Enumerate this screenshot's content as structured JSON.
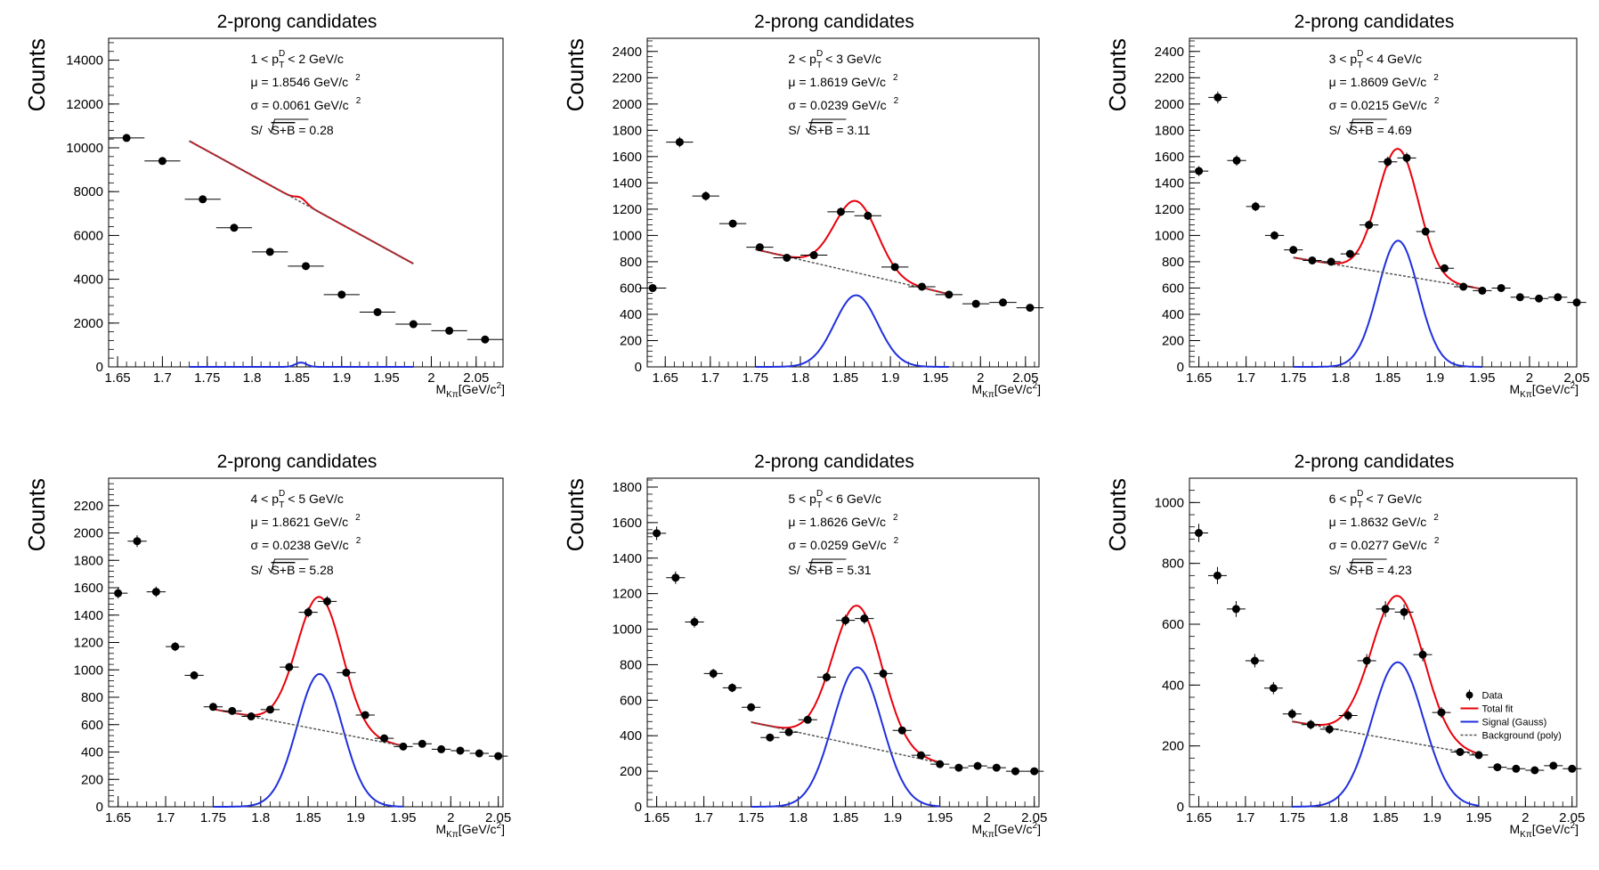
{
  "colors": {
    "data": "#000000",
    "total": "#e8000b",
    "signal": "#1f2fdc",
    "background": "#555555"
  },
  "legend": {
    "data": "Data",
    "total": "Total fit",
    "signal": "Signal (Gauss)",
    "background": "Background (poly)"
  },
  "chart_data": [
    {
      "type": "scatter",
      "title": "2-prong candidates",
      "ylabel": "Counts",
      "xlabel_main": "M",
      "xlabel_sub": "Kπ",
      "xlabel_unit": "[GeV/c",
      "xlabel_unit_sup": "2",
      "xlabel_close": "]",
      "xlim": [
        1.64,
        2.08
      ],
      "ylim": [
        0,
        15000
      ],
      "xticks": [
        1.65,
        1.7,
        1.75,
        1.8,
        1.85,
        1.9,
        1.95,
        2,
        2.05
      ],
      "xtick_labels": [
        "1.65",
        "1.7",
        "1.75",
        "1.8",
        "1.85",
        "1.9",
        "1.95",
        "2",
        "2.05"
      ],
      "yticks": [
        0,
        2000,
        4000,
        6000,
        8000,
        10000,
        12000,
        14000
      ],
      "pt_lo": "1",
      "pt_hi": "2",
      "pt_unit": "GeV/c",
      "mu_text": "μ = 1.8546 GeV/c",
      "sigma_text": "σ = 0.0061 GeV/c",
      "unit_sup": "2",
      "sig_prefix": "S/",
      "sig_sqrt": "S+B",
      "sig_value": " = 0.28",
      "data": {
        "x": [
          1.66,
          1.7,
          1.745,
          1.78,
          1.82,
          1.86,
          1.9,
          1.94,
          1.98,
          2.02,
          2.06
        ],
        "y": [
          10450,
          9400,
          7650,
          6350,
          5250,
          4600,
          3300,
          2500,
          1950,
          1650,
          1250
        ],
        "xerr": 0.02,
        "yerr": [
          120,
          110,
          100,
          90,
          80,
          75,
          65,
          55,
          50,
          45,
          40
        ]
      },
      "fit": {
        "range": [
          1.73,
          1.98
        ],
        "mu": 1.8546,
        "sigma": 0.0061,
        "amp": 200,
        "bg_a": 7400,
        "bg_b": -22400
      },
      "show_legend": false
    },
    {
      "type": "scatter",
      "title": "2-prong candidates",
      "ylabel": "Counts",
      "xlabel_main": "M",
      "xlabel_sub": "Kπ",
      "xlabel_unit": "[GeV/c",
      "xlabel_unit_sup": "2",
      "xlabel_close": "]",
      "xlim": [
        1.63,
        2.065
      ],
      "ylim": [
        0,
        2500
      ],
      "xticks": [
        1.65,
        1.7,
        1.75,
        1.8,
        1.85,
        1.9,
        1.95,
        2,
        2.05
      ],
      "xtick_labels": [
        "1.65",
        "1.7",
        "1.75",
        "1.8",
        "1.85",
        "1.9",
        "1.95",
        "2",
        "2.05"
      ],
      "yticks": [
        0,
        200,
        400,
        600,
        800,
        1000,
        1200,
        1400,
        1600,
        1800,
        2000,
        2200,
        2400
      ],
      "pt_lo": "2",
      "pt_hi": "3",
      "pt_unit": "GeV/c",
      "mu_text": "μ = 1.8619 GeV/c",
      "sigma_text": "σ = 0.0239 GeV/c",
      "unit_sup": "2",
      "sig_prefix": "S/",
      "sig_sqrt": "S+B",
      "sig_value": " = 3.11",
      "data": {
        "x": [
          1.636,
          1.666,
          1.695,
          1.725,
          1.755,
          1.785,
          1.815,
          1.845,
          1.875,
          1.905,
          1.935,
          1.965,
          1.995,
          2.025,
          2.055
        ],
        "y": [
          600,
          1710,
          1300,
          1090,
          910,
          830,
          850,
          1180,
          1150,
          760,
          610,
          550,
          480,
          490,
          450
        ],
        "xerr": 0.015,
        "yerr": [
          24,
          40,
          35,
          30,
          28,
          28,
          28,
          33,
          33,
          27,
          24,
          23,
          22,
          22,
          21
        ]
      },
      "fit": {
        "range": [
          1.75,
          1.965
        ],
        "mu": 1.8619,
        "sigma": 0.0239,
        "amp": 545,
        "bg_a": 720,
        "bg_b": -1585
      },
      "show_legend": false
    },
    {
      "type": "scatter",
      "title": "2-prong candidates",
      "ylabel": "Counts",
      "xlabel_main": "M",
      "xlabel_sub": "Kπ",
      "xlabel_unit": "[GeV/c",
      "xlabel_unit_sup": "2",
      "xlabel_close": "]",
      "xlim": [
        1.64,
        2.05
      ],
      "ylim": [
        0,
        2500
      ],
      "xticks": [
        1.65,
        1.7,
        1.75,
        1.8,
        1.85,
        1.9,
        1.95,
        2,
        2.05
      ],
      "xtick_labels": [
        "1.65",
        "1.7",
        "1.75",
        "1.8",
        "1.85",
        "1.9",
        "1.95",
        "2",
        "2.05"
      ],
      "yticks": [
        0,
        200,
        400,
        600,
        800,
        1000,
        1200,
        1400,
        1600,
        1800,
        2000,
        2200,
        2400
      ],
      "pt_lo": "3",
      "pt_hi": "4",
      "pt_unit": "GeV/c",
      "mu_text": "μ = 1.8609 GeV/c",
      "sigma_text": "σ = 0.0215 GeV/c",
      "unit_sup": "2",
      "sig_prefix": "S/",
      "sig_sqrt": "S+B",
      "sig_value": " = 4.69",
      "data": {
        "x": [
          1.65,
          1.67,
          1.69,
          1.71,
          1.73,
          1.75,
          1.77,
          1.79,
          1.81,
          1.83,
          1.85,
          1.87,
          1.89,
          1.91,
          1.93,
          1.95,
          1.97,
          1.99,
          2.01,
          2.03,
          2.05
        ],
        "y": [
          1490,
          2050,
          1570,
          1220,
          1000,
          890,
          810,
          800,
          860,
          1080,
          1560,
          1590,
          1030,
          750,
          610,
          580,
          600,
          530,
          520,
          530,
          490
        ],
        "xerr": 0.01,
        "yerr": [
          38,
          45,
          40,
          35,
          32,
          30,
          28,
          28,
          29,
          33,
          40,
          40,
          32,
          27,
          25,
          24,
          24,
          23,
          23,
          23,
          22
        ]
      },
      "fit": {
        "range": [
          1.75,
          1.95
        ],
        "mu": 1.8609,
        "sigma": 0.0215,
        "amp": 960,
        "bg_a": 700,
        "bg_b": -1200
      },
      "show_legend": false
    },
    {
      "type": "scatter",
      "title": "2-prong candidates",
      "ylabel": "Counts",
      "xlabel_main": "M",
      "xlabel_sub": "Kπ",
      "xlabel_unit": "[GeV/c",
      "xlabel_unit_sup": "2",
      "xlabel_close": "]",
      "xlim": [
        1.64,
        2.055
      ],
      "ylim": [
        0,
        2400
      ],
      "xticks": [
        1.65,
        1.7,
        1.75,
        1.8,
        1.85,
        1.9,
        1.95,
        2,
        2.05
      ],
      "xtick_labels": [
        "1.65",
        "1.7",
        "1.75",
        "1.8",
        "1.85",
        "1.9",
        "1.95",
        "2",
        "2.05"
      ],
      "yticks": [
        0,
        200,
        400,
        600,
        800,
        1000,
        1200,
        1400,
        1600,
        1800,
        2000,
        2200
      ],
      "pt_lo": "4",
      "pt_hi": "5",
      "pt_unit": "GeV/c",
      "mu_text": "μ = 1.8621 GeV/c",
      "sigma_text": "σ = 0.0238 GeV/c",
      "unit_sup": "2",
      "sig_prefix": "S/",
      "sig_sqrt": "S+B",
      "sig_value": " = 5.28",
      "data": {
        "x": [
          1.65,
          1.67,
          1.69,
          1.71,
          1.73,
          1.75,
          1.77,
          1.79,
          1.81,
          1.83,
          1.85,
          1.87,
          1.89,
          1.91,
          1.93,
          1.95,
          1.97,
          1.99,
          2.01,
          2.03,
          2.05
        ],
        "y": [
          1560,
          1940,
          1570,
          1170,
          960,
          730,
          700,
          660,
          710,
          1020,
          1420,
          1500,
          980,
          670,
          500,
          440,
          460,
          420,
          410,
          390,
          370
        ],
        "xerr": 0.01,
        "yerr": [
          38,
          43,
          38,
          33,
          30,
          26,
          26,
          25,
          26,
          31,
          37,
          38,
          30,
          25,
          22,
          21,
          21,
          20,
          20,
          19,
          19
        ]
      },
      "fit": {
        "range": [
          1.75,
          1.95
        ],
        "mu": 1.8621,
        "sigma": 0.0238,
        "amp": 970,
        "bg_a": 565,
        "bg_b": -1350
      },
      "show_legend": false
    },
    {
      "type": "scatter",
      "title": "2-prong candidates",
      "ylabel": "Counts",
      "xlabel_main": "M",
      "xlabel_sub": "Kπ",
      "xlabel_unit": "[GeV/c",
      "xlabel_unit_sup": "2",
      "xlabel_close": "]",
      "xlim": [
        1.64,
        2.055
      ],
      "ylim": [
        0,
        1850
      ],
      "xticks": [
        1.65,
        1.7,
        1.75,
        1.8,
        1.85,
        1.9,
        1.95,
        2,
        2.05
      ],
      "xtick_labels": [
        "1.65",
        "1.7",
        "1.75",
        "1.8",
        "1.85",
        "1.9",
        "1.95",
        "2",
        "2.05"
      ],
      "yticks": [
        0,
        200,
        400,
        600,
        800,
        1000,
        1200,
        1400,
        1600,
        1800
      ],
      "pt_lo": "5",
      "pt_hi": "6",
      "pt_unit": "GeV/c",
      "mu_text": "μ = 1.8626 GeV/c",
      "sigma_text": "σ = 0.0259 GeV/c",
      "unit_sup": "2",
      "sig_prefix": "S/",
      "sig_sqrt": "S+B",
      "sig_value": " = 5.31",
      "data": {
        "x": [
          1.65,
          1.67,
          1.69,
          1.71,
          1.73,
          1.75,
          1.77,
          1.79,
          1.81,
          1.83,
          1.85,
          1.87,
          1.89,
          1.91,
          1.93,
          1.95,
          1.97,
          1.99,
          2.01,
          2.03,
          2.05
        ],
        "y": [
          1540,
          1290,
          1040,
          750,
          670,
          560,
          390,
          420,
          490,
          730,
          1050,
          1060,
          750,
          430,
          290,
          240,
          220,
          230,
          220,
          200,
          200
        ],
        "xerr": 0.01,
        "yerr": [
          38,
          35,
          31,
          27,
          25,
          23,
          19,
          20,
          22,
          26,
          31,
          31,
          27,
          20,
          17,
          15,
          14,
          15,
          14,
          14,
          14
        ]
      },
      "fit": {
        "range": [
          1.75,
          1.95
        ],
        "mu": 1.8626,
        "sigma": 0.0259,
        "amp": 785,
        "bg_a": 350,
        "bg_b": -1150
      },
      "show_legend": false
    },
    {
      "type": "scatter",
      "title": "2-prong candidates",
      "ylabel": "Counts",
      "xlabel_main": "M",
      "xlabel_sub": "Kπ",
      "xlabel_unit": "[GeV/c",
      "xlabel_unit_sup": "2",
      "xlabel_close": "]",
      "xlim": [
        1.64,
        2.055
      ],
      "ylim": [
        0,
        1080
      ],
      "xticks": [
        1.65,
        1.7,
        1.75,
        1.8,
        1.85,
        1.9,
        1.95,
        2,
        2.05
      ],
      "xtick_labels": [
        "1.65",
        "1.7",
        "1.75",
        "1.8",
        "1.85",
        "1.9",
        "1.95",
        "2",
        "2.05"
      ],
      "yticks": [
        0,
        200,
        400,
        600,
        800,
        1000
      ],
      "pt_lo": "6",
      "pt_hi": "7",
      "pt_unit": "GeV/c",
      "mu_text": "μ = 1.8632 GeV/c",
      "sigma_text": "σ = 0.0277 GeV/c",
      "unit_sup": "2",
      "sig_prefix": "S/",
      "sig_sqrt": "S+B",
      "sig_value": " = 4.23",
      "data": {
        "x": [
          1.65,
          1.67,
          1.69,
          1.71,
          1.73,
          1.75,
          1.77,
          1.79,
          1.81,
          1.83,
          1.85,
          1.87,
          1.89,
          1.91,
          1.93,
          1.95,
          1.97,
          1.99,
          2.01,
          2.03,
          2.05
        ],
        "y": [
          900,
          760,
          650,
          480,
          390,
          305,
          270,
          255,
          300,
          480,
          650,
          640,
          500,
          310,
          180,
          170,
          130,
          125,
          120,
          135,
          125
        ],
        "xerr": 0.01,
        "yerr": [
          30,
          28,
          26,
          22,
          20,
          17,
          16,
          16,
          17,
          22,
          26,
          25,
          22,
          18,
          13,
          13,
          11,
          11,
          11,
          12,
          11
        ]
      },
      "fit": {
        "range": [
          1.75,
          1.95
        ],
        "mu": 1.8632,
        "sigma": 0.0277,
        "amp": 475,
        "bg_a": 220,
        "bg_b": -550
      },
      "show_legend": true
    }
  ]
}
